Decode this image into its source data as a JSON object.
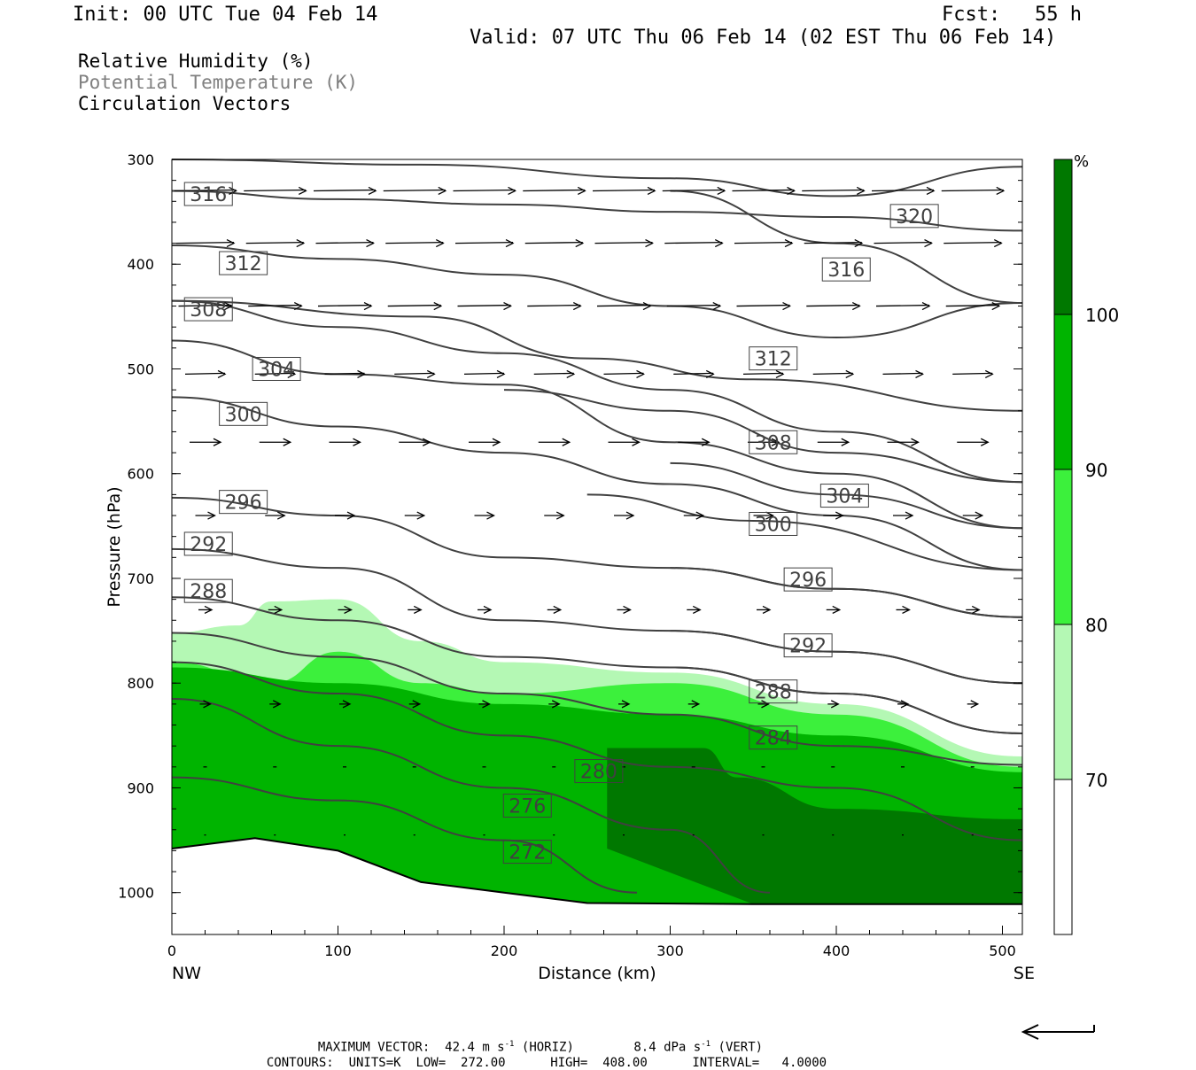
{
  "header": {
    "init": "Init: 00 UTC Tue 04 Feb 14",
    "fcst_label": "Fcst:",
    "fcst_value": "55 h",
    "valid": "Valid: 07 UTC Thu 06 Feb 14 (02 EST Thu 06 Feb 14)"
  },
  "fields": [
    {
      "label": "Relative Humidity (%)",
      "color": "#000000"
    },
    {
      "label": "Potential Temperature (K)",
      "color": "#808080"
    },
    {
      "label": "Circulation Vectors",
      "color": "#000000"
    }
  ],
  "footer": {
    "max_vector_label": "MAXIMUM VECTOR:",
    "horiz_value": "42.4",
    "horiz_unit_m": "m s",
    "horiz_exp": "-1",
    "horiz_tag": "(HORIZ)",
    "vert_value": "8.4",
    "vert_unit": "dPa s",
    "vert_exp": "-1",
    "vert_tag": "(VERT)",
    "contours_label": "CONTOURS:",
    "units": "UNITS=K",
    "low_label": "LOW=",
    "low_value": "272.00",
    "high_label": "HIGH=",
    "high_value": "408.00",
    "interval_label": "INTERVAL=",
    "interval_value": "4.0000"
  },
  "chart_data": {
    "type": "contour-cross-section",
    "xlabel": "Distance (km)",
    "ylabel": "Pressure (hPa)",
    "x_ticks": [
      0,
      100,
      200,
      300,
      400,
      500
    ],
    "y_ticks": [
      300,
      400,
      500,
      600,
      700,
      800,
      900,
      1000
    ],
    "xlim": [
      0,
      512
    ],
    "ylim": [
      300,
      1040
    ],
    "y_inverted": true,
    "x_end_labels": {
      "left": "NW",
      "right": "SE"
    },
    "colorbar": {
      "unit": "%",
      "levels": [
        70,
        80,
        90,
        100
      ],
      "colors": [
        "#ffffff",
        "#b4f8b4",
        "#3cf03c",
        "#00b400",
        "#007800"
      ]
    },
    "theta_contours": [
      {
        "value": 320,
        "label_at": [
          447,
          354
        ],
        "points": [
          [
            0,
            330
          ],
          [
            100,
            338
          ],
          [
            200,
            343
          ],
          [
            300,
            350
          ],
          [
            400,
            355
          ],
          [
            512,
            368
          ]
        ]
      },
      {
        "value": 316,
        "label_at": [
          22,
          333
        ],
        "points": [
          [
            0,
            300
          ],
          [
            150,
            305
          ],
          [
            300,
            318
          ],
          [
            400,
            335
          ],
          [
            512,
            307
          ]
        ]
      },
      {
        "value": 312,
        "label_at": [
          43,
          399
        ],
        "points": [
          [
            0,
            382
          ],
          [
            100,
            395
          ],
          [
            200,
            410
          ],
          [
            300,
            440
          ],
          [
            400,
            470
          ],
          [
            512,
            437
          ]
        ]
      },
      {
        "value": 316,
        "label_at": [
          406,
          405
        ],
        "points": [
          [
            300,
            330
          ],
          [
            400,
            380
          ],
          [
            512,
            437
          ]
        ]
      },
      {
        "value": 308,
        "label_at": [
          22,
          443
        ],
        "points": [
          [
            0,
            435
          ],
          [
            100,
            460
          ],
          [
            200,
            485
          ],
          [
            300,
            520
          ],
          [
            400,
            560
          ],
          [
            512,
            608
          ]
        ]
      },
      {
        "value": 312,
        "label_at": [
          362,
          490
        ],
        "points": [
          [
            0,
            435
          ],
          [
            150,
            450
          ],
          [
            250,
            490
          ],
          [
            350,
            510
          ],
          [
            512,
            540
          ]
        ]
      },
      {
        "value": 304,
        "label_at": [
          63,
          500
        ],
        "points": [
          [
            0,
            473
          ],
          [
            100,
            505
          ],
          [
            200,
            515
          ],
          [
            300,
            570
          ],
          [
            400,
            600
          ],
          [
            512,
            652
          ]
        ]
      },
      {
        "value": 300,
        "label_at": [
          43,
          543
        ],
        "points": [
          [
            0,
            527
          ],
          [
            100,
            555
          ],
          [
            200,
            580
          ],
          [
            300,
            610
          ],
          [
            400,
            640
          ],
          [
            512,
            692
          ]
        ]
      },
      {
        "value": 308,
        "label_at": [
          362,
          570
        ],
        "points": [
          [
            200,
            520
          ],
          [
            300,
            540
          ],
          [
            400,
            580
          ],
          [
            512,
            608
          ]
        ]
      },
      {
        "value": 304,
        "label_at": [
          405,
          621
        ],
        "points": [
          [
            300,
            590
          ],
          [
            400,
            620
          ],
          [
            512,
            652
          ]
        ]
      },
      {
        "value": 296,
        "label_at": [
          43,
          627
        ],
        "points": [
          [
            0,
            623
          ],
          [
            100,
            640
          ],
          [
            200,
            680
          ],
          [
            300,
            690
          ],
          [
            400,
            710
          ],
          [
            512,
            737
          ]
        ]
      },
      {
        "value": 300,
        "label_at": [
          362,
          648
        ],
        "points": [
          [
            250,
            620
          ],
          [
            350,
            645
          ],
          [
            512,
            692
          ]
        ]
      },
      {
        "value": 292,
        "label_at": [
          22,
          667
        ],
        "points": [
          [
            0,
            672
          ],
          [
            100,
            690
          ],
          [
            200,
            740
          ],
          [
            300,
            750
          ],
          [
            400,
            770
          ],
          [
            512,
            800
          ]
        ]
      },
      {
        "value": 288,
        "label_at": [
          22,
          712
        ],
        "points": [
          [
            0,
            718
          ],
          [
            100,
            740
          ],
          [
            200,
            775
          ],
          [
            300,
            785
          ],
          [
            400,
            810
          ],
          [
            512,
            848
          ]
        ]
      },
      {
        "value": 296,
        "label_at": [
          383,
          701
        ],
        "points": [
          [
            300,
            690
          ],
          [
            400,
            710
          ],
          [
            512,
            737
          ]
        ]
      },
      {
        "value": 292,
        "label_at": [
          383,
          764
        ],
        "points": [
          [
            300,
            750
          ],
          [
            400,
            770
          ],
          [
            512,
            800
          ]
        ]
      },
      {
        "value": 288,
        "label_at": [
          362,
          808
        ],
        "points": [
          [
            300,
            785
          ],
          [
            400,
            810
          ],
          [
            512,
            848
          ]
        ]
      },
      {
        "value": 284,
        "label_at": [
          362,
          852
        ],
        "points": [
          [
            0,
            752
          ],
          [
            100,
            775
          ],
          [
            200,
            810
          ],
          [
            300,
            830
          ],
          [
            400,
            860
          ],
          [
            512,
            878
          ]
        ]
      },
      {
        "value": 280,
        "label_at": [
          257,
          884
        ],
        "points": [
          [
            0,
            780
          ],
          [
            100,
            810
          ],
          [
            200,
            850
          ],
          [
            300,
            880
          ],
          [
            400,
            900
          ],
          [
            512,
            950
          ]
        ]
      },
      {
        "value": 276,
        "label_at": [
          214,
          917
        ],
        "points": [
          [
            0,
            815
          ],
          [
            100,
            860
          ],
          [
            200,
            900
          ],
          [
            300,
            940
          ],
          [
            360,
            1000
          ]
        ]
      },
      {
        "value": 272,
        "label_at": [
          214,
          961
        ],
        "points": [
          [
            0,
            890
          ],
          [
            100,
            912
          ],
          [
            200,
            950
          ],
          [
            280,
            1000
          ]
        ]
      }
    ],
    "rh_regions": [
      {
        "level": "70-80",
        "color": "#b4f8b4",
        "boundary_top": [
          [
            0,
            752
          ],
          [
            40,
            745
          ],
          [
            60,
            722
          ],
          [
            100,
            720
          ],
          [
            150,
            760
          ],
          [
            200,
            780
          ],
          [
            300,
            790
          ],
          [
            400,
            820
          ],
          [
            512,
            870
          ]
        ]
      },
      {
        "level": "80-90",
        "color": "#3cf03c",
        "boundary_top": [
          [
            0,
            780
          ],
          [
            60,
            800
          ],
          [
            100,
            770
          ],
          [
            150,
            800
          ],
          [
            200,
            810
          ],
          [
            300,
            800
          ],
          [
            400,
            830
          ],
          [
            512,
            880
          ]
        ]
      },
      {
        "level": "90-100",
        "color": "#00b400",
        "boundary_top": [
          [
            0,
            785
          ],
          [
            100,
            800
          ],
          [
            200,
            820
          ],
          [
            300,
            830
          ],
          [
            400,
            850
          ],
          [
            512,
            885
          ]
        ]
      },
      {
        "level": ">100",
        "color": "#007800",
        "boundary_top": [
          [
            262,
            862
          ],
          [
            320,
            862
          ],
          [
            340,
            890
          ],
          [
            400,
            920
          ],
          [
            512,
            930
          ]
        ]
      }
    ],
    "terrain_surface_hpa": [
      [
        0,
        958
      ],
      [
        50,
        948
      ],
      [
        100,
        960
      ],
      [
        150,
        990
      ],
      [
        200,
        1000
      ],
      [
        250,
        1010
      ],
      [
        350,
        1011
      ],
      [
        512,
        1011
      ]
    ]
  }
}
